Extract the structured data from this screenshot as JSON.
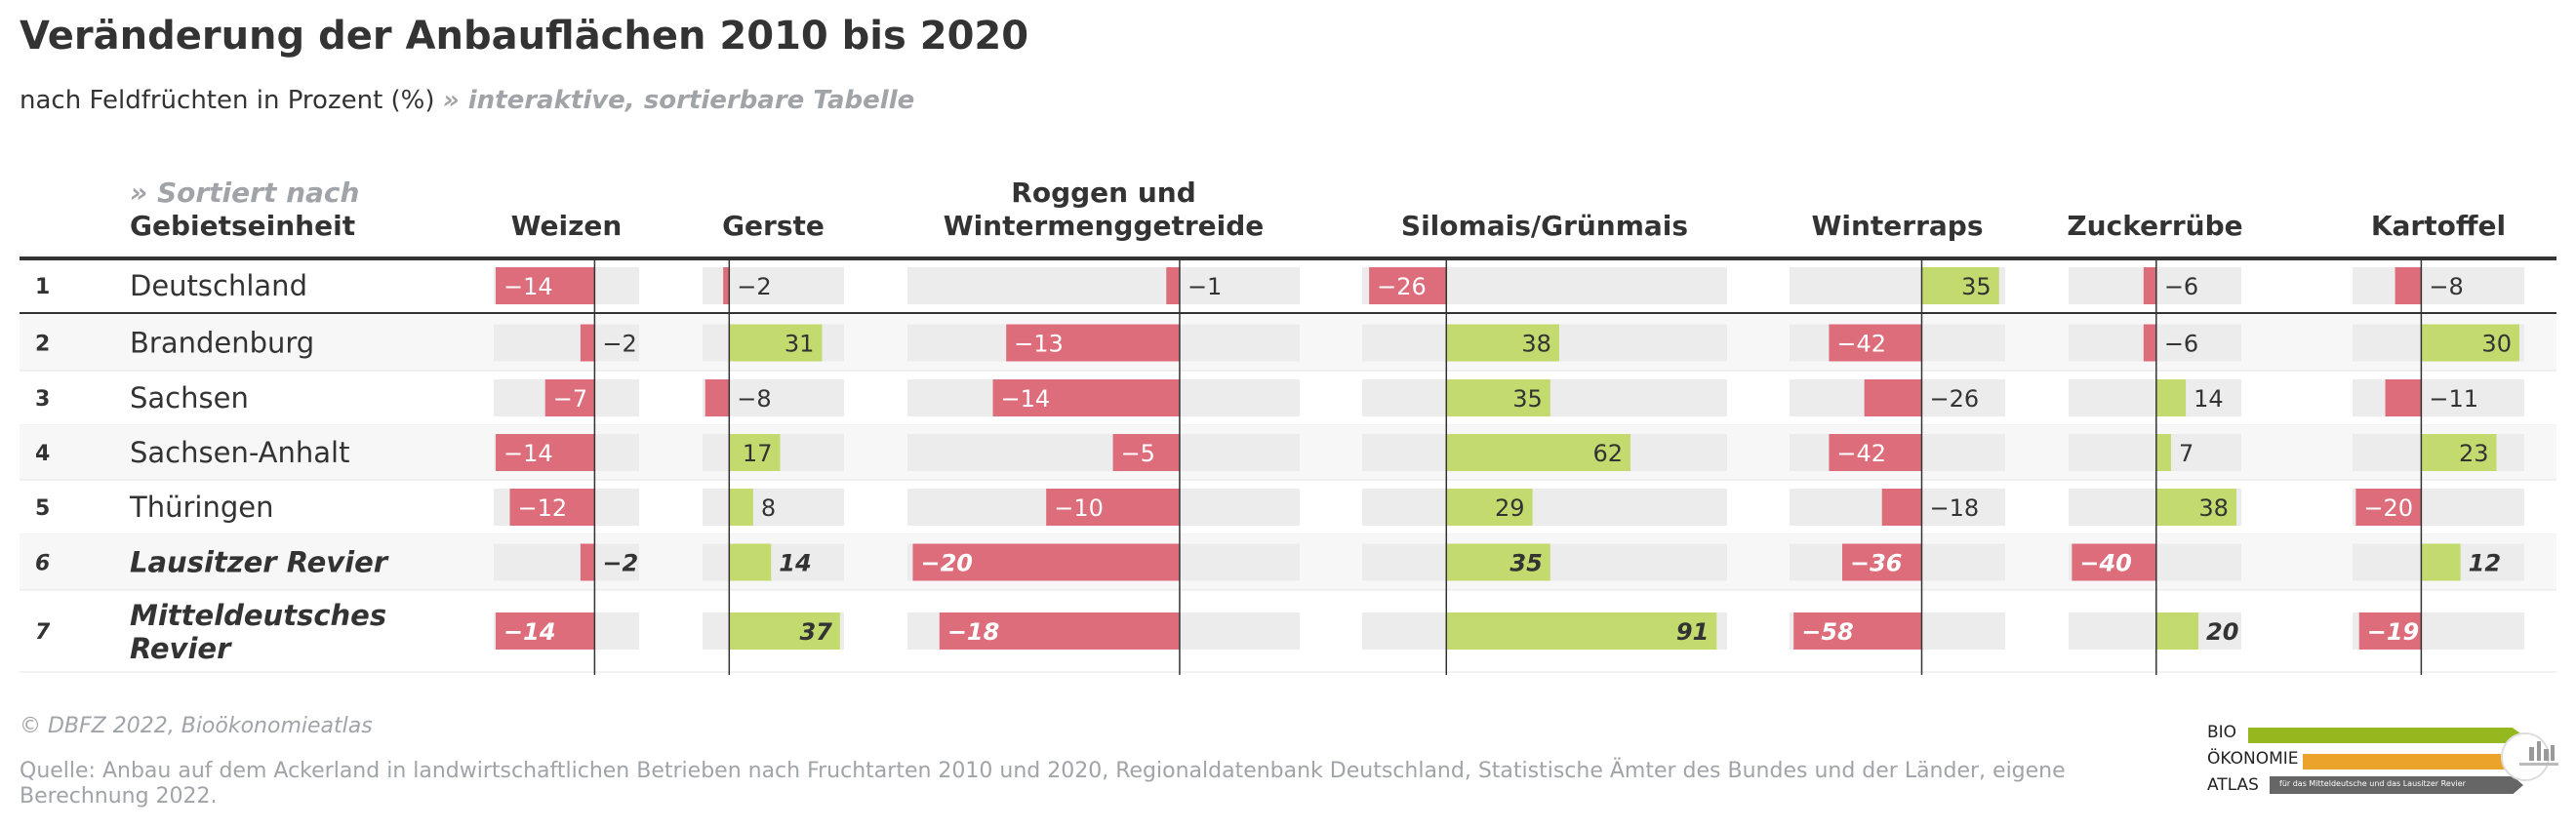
{
  "header": {
    "title": "Veränderung der Anbauflächen 2010 bis 2020",
    "subtitle": "nach Feldfrüchten in Prozent (%)",
    "table_link": "» interaktive, sortierbare Tabelle"
  },
  "table": {
    "sort_hint": "» Sortiert nach",
    "region_header": "Gebietseinheit"
  },
  "chart_data": {
    "type": "bar",
    "columns": [
      "Weizen",
      "Gerste",
      "Roggen und Wintermenggetreide",
      "Silomais/Grünmais",
      "Winterraps",
      "Zuckerrübe",
      "Kartoffel"
    ],
    "rows": [
      {
        "rank": "1",
        "name": "Deutschland",
        "emphasis": false,
        "values": [
          -14,
          -2,
          -1,
          -26,
          35,
          -6,
          -8
        ]
      },
      {
        "rank": "2",
        "name": "Brandenburg",
        "emphasis": false,
        "values": [
          -2,
          31,
          -13,
          38,
          -42,
          -6,
          30
        ]
      },
      {
        "rank": "3",
        "name": "Sachsen",
        "emphasis": false,
        "values": [
          -7,
          -8,
          -14,
          35,
          -26,
          14,
          -11
        ]
      },
      {
        "rank": "4",
        "name": "Sachsen-Anhalt",
        "emphasis": false,
        "values": [
          -14,
          17,
          -5,
          62,
          -42,
          7,
          23
        ]
      },
      {
        "rank": "5",
        "name": "Thüringen",
        "emphasis": false,
        "values": [
          -12,
          8,
          -10,
          29,
          -18,
          38,
          -20
        ]
      },
      {
        "rank": "6",
        "name": "Lausitzer Revier",
        "emphasis": true,
        "values": [
          -2,
          14,
          -20,
          35,
          -36,
          -40,
          12
        ]
      },
      {
        "rank": "7",
        "name": "Mitteldeutsches Revier",
        "emphasis": true,
        "values": [
          -14,
          37,
          -18,
          91,
          -58,
          20,
          -19
        ]
      }
    ],
    "colors": {
      "positive": "#c2da6e",
      "negative": "#dd6d7a",
      "track": "#ececec",
      "axis": "#333333",
      "alt_row": "#f7f7f7"
    }
  },
  "footer": {
    "credit": "© DBFZ 2022, Bioökonomieatlas",
    "source": "Quelle: Anbau auf dem Ackerland in landwirtschaftlichen Betrieben nach Fruchtarten 2010 und 2020, Regionaldatenbank Deutschland, Statistische Ämter des Bundes und der Länder, eigene Berechnung 2022."
  },
  "logo": {
    "line1": "BIO",
    "line2": "ÖKONOMIE",
    "line3": "ATLAS",
    "tagline": "für das Mitteldeutsche und das Lausitzer Revier",
    "green": "#94b81e",
    "orange": "#eca32c",
    "gray": "#666666"
  }
}
